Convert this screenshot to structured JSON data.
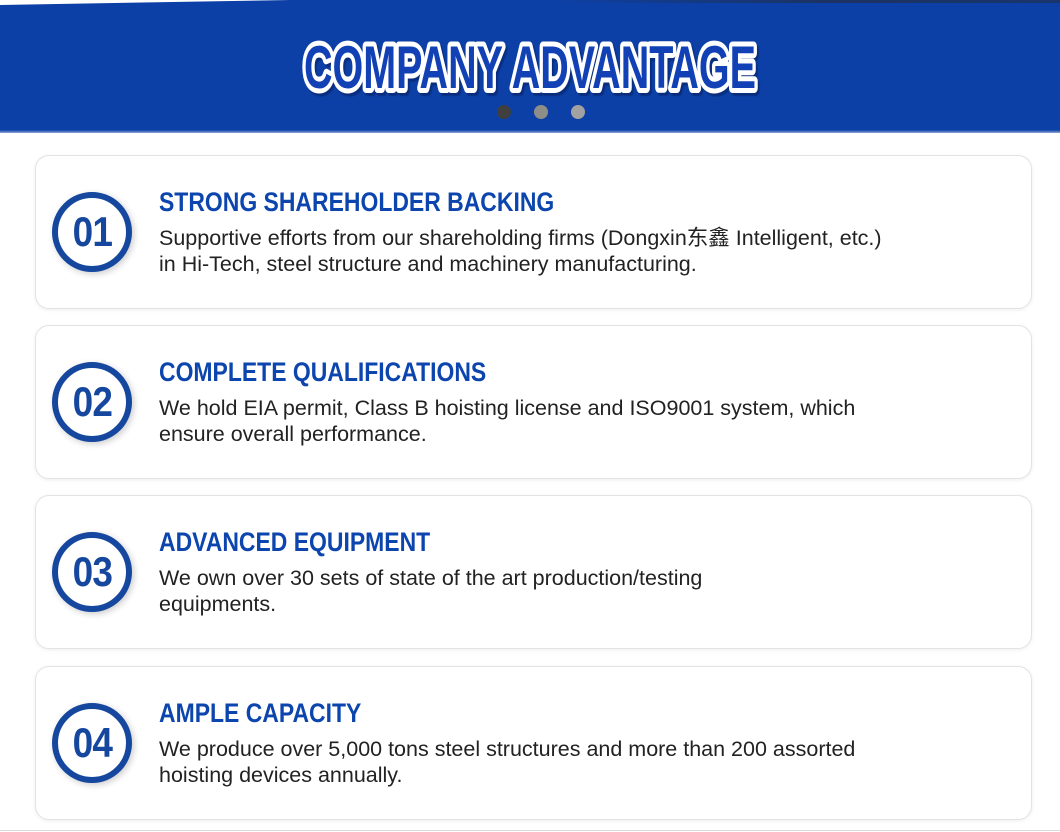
{
  "banner": {
    "title": "COMPANY ADVANTAGE",
    "dots": [
      {
        "style": "background:#3f3f3f"
      },
      {
        "style": "background:#8e8e88"
      },
      {
        "style": "background:#a2a2a2"
      }
    ]
  },
  "colors": {
    "banner_blue": "#0d40a6",
    "title_blue": "#1141b5",
    "heading_blue": "#0c45ad",
    "circle_blue": "#16479f",
    "body_text": "#222222"
  },
  "cards": [
    {
      "number": "01",
      "heading": "STRONG SHAREHOLDER BACKING",
      "body_line1": "Supportive efforts from our shareholding firms (Dongxin东鑫 Intelligent, etc.)",
      "body_line2": "in Hi-Tech, steel structure and machinery manufacturing."
    },
    {
      "number": "02",
      "heading": "COMPLETE QUALIFICATIONS",
      "body_line1": "We hold EIA permit, Class B hoisting license and ISO9001 system, which",
      "body_line2": "ensure overall performance."
    },
    {
      "number": "03",
      "heading": "ADVANCED EQUIPMENT",
      "body_line1": "We own over 30 sets of state of the art production/testing",
      "body_line2": "equipments."
    },
    {
      "number": "04",
      "heading": "AMPLE CAPACITY",
      "body_line1": "We produce over 5,000 tons steel structures and more than 200 assorted",
      "body_line2": "hoisting devices annually."
    }
  ]
}
